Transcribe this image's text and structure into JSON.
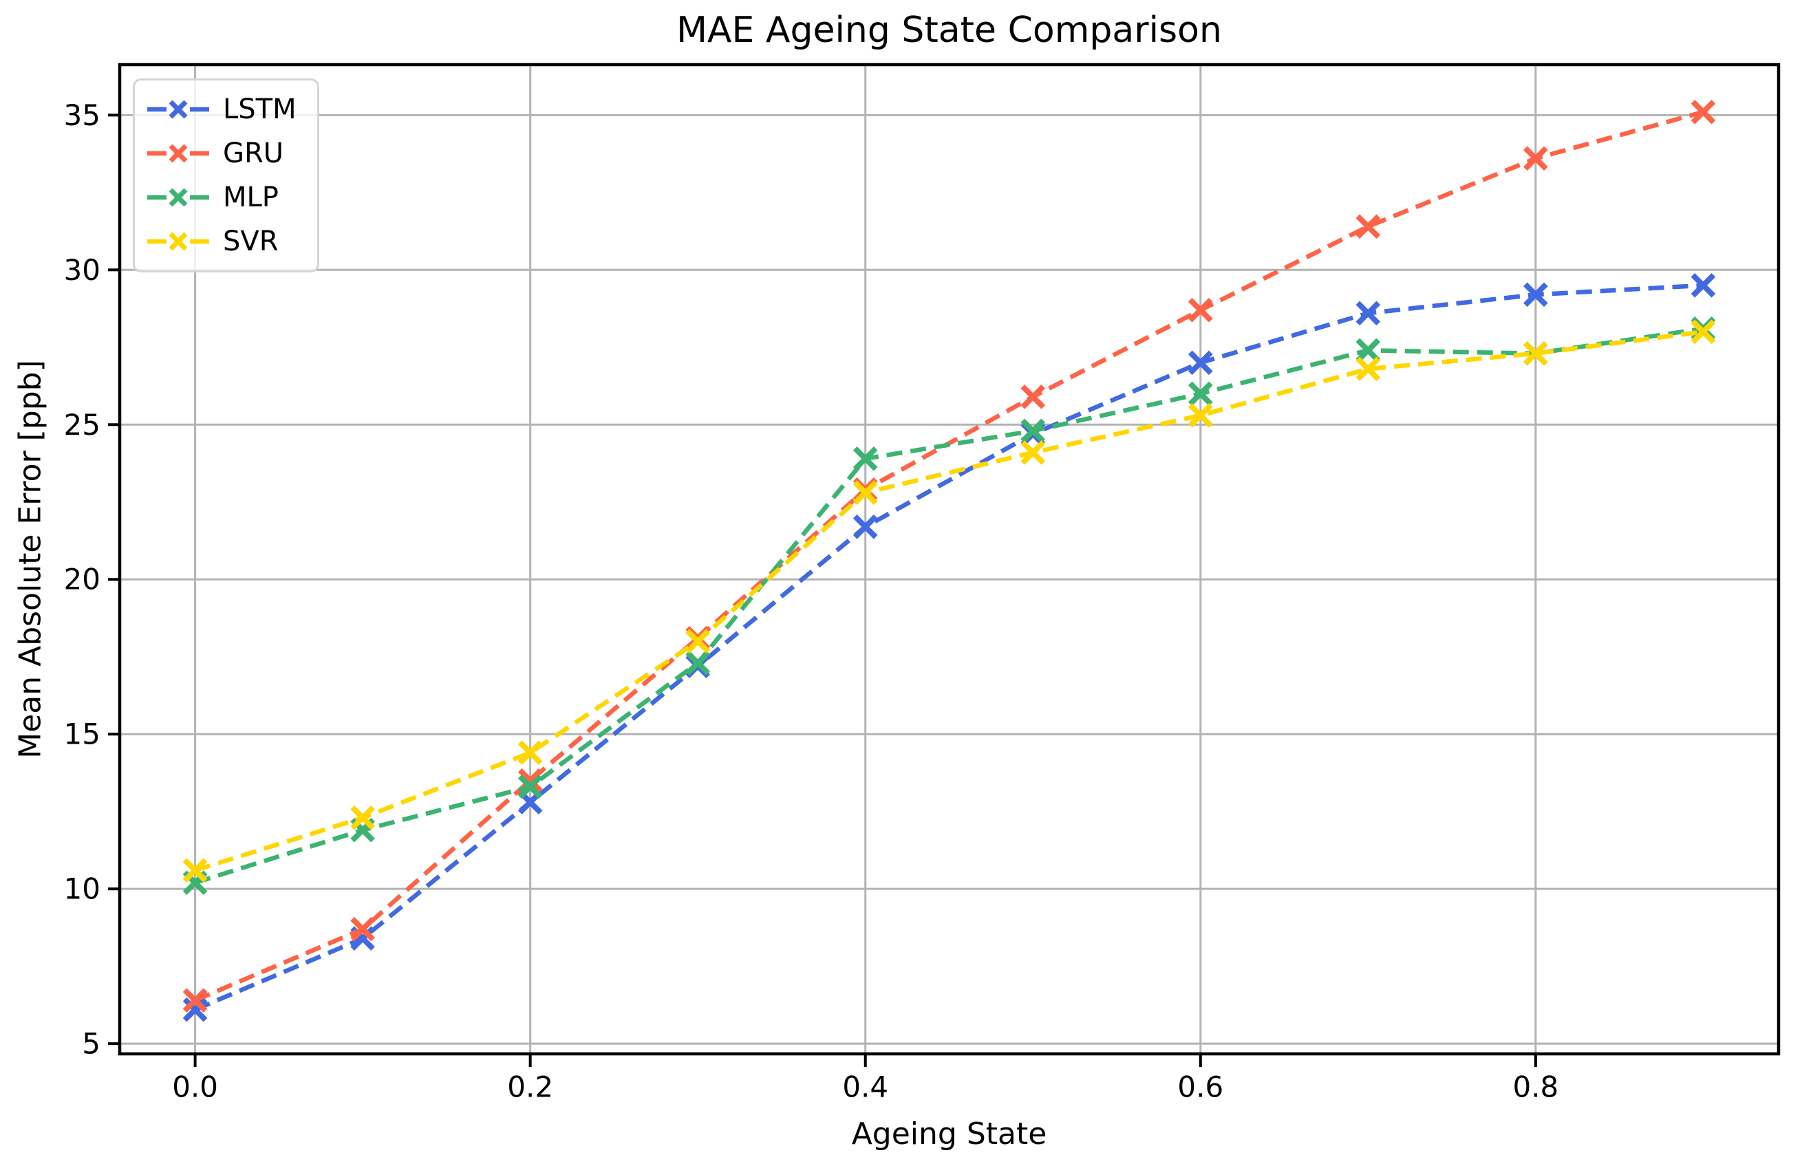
{
  "figure": {
    "title": "MAE Ageing State Comparison",
    "xlabel": "Ageing State",
    "ylabel": "Mean Absolute Error [ppb]"
  },
  "chart_data": {
    "type": "line",
    "title": "MAE Ageing State Comparison",
    "xlabel": "Ageing State",
    "ylabel": "Mean Absolute Error [ppb]",
    "line_style": "dashed",
    "marker": "x",
    "grid": true,
    "grid_color": "#b3b3b3",
    "spine_color": "#000000",
    "background_color": "#ffffff",
    "legend_position": "upper-left",
    "x": [
      0.0,
      0.1,
      0.2,
      0.3,
      0.4,
      0.5,
      0.6,
      0.7,
      0.8,
      0.9
    ],
    "series": [
      {
        "name": "LSTM",
        "color": "#4169E1",
        "values": [
          6.1,
          8.4,
          12.8,
          17.2,
          21.7,
          24.7,
          27.0,
          28.6,
          29.2,
          29.5
        ]
      },
      {
        "name": "GRU",
        "color": "#FF6347",
        "values": [
          6.4,
          8.7,
          13.5,
          18.1,
          22.9,
          25.9,
          28.7,
          31.4,
          33.6,
          35.1
        ]
      },
      {
        "name": "MLP",
        "color": "#3CB371",
        "values": [
          10.2,
          11.9,
          13.3,
          17.3,
          23.9,
          24.8,
          26.0,
          27.4,
          27.3,
          28.1
        ]
      },
      {
        "name": "SVR",
        "color": "#FFD700",
        "values": [
          10.6,
          12.3,
          14.4,
          18.0,
          22.8,
          24.1,
          25.3,
          26.8,
          27.3,
          28.0
        ]
      }
    ],
    "xticks": {
      "values": [
        0.0,
        0.2,
        0.4,
        0.6,
        0.8
      ],
      "labels": [
        "0.0",
        "0.2",
        "0.4",
        "0.6",
        "0.8"
      ]
    },
    "yticks": {
      "values": [
        5,
        10,
        15,
        20,
        25,
        30,
        35
      ],
      "labels": [
        "5",
        "10",
        "15",
        "20",
        "25",
        "30",
        "35"
      ]
    },
    "xlim": [
      -0.045,
      0.945
    ],
    "ylim": [
      4.67,
      36.63
    ]
  }
}
